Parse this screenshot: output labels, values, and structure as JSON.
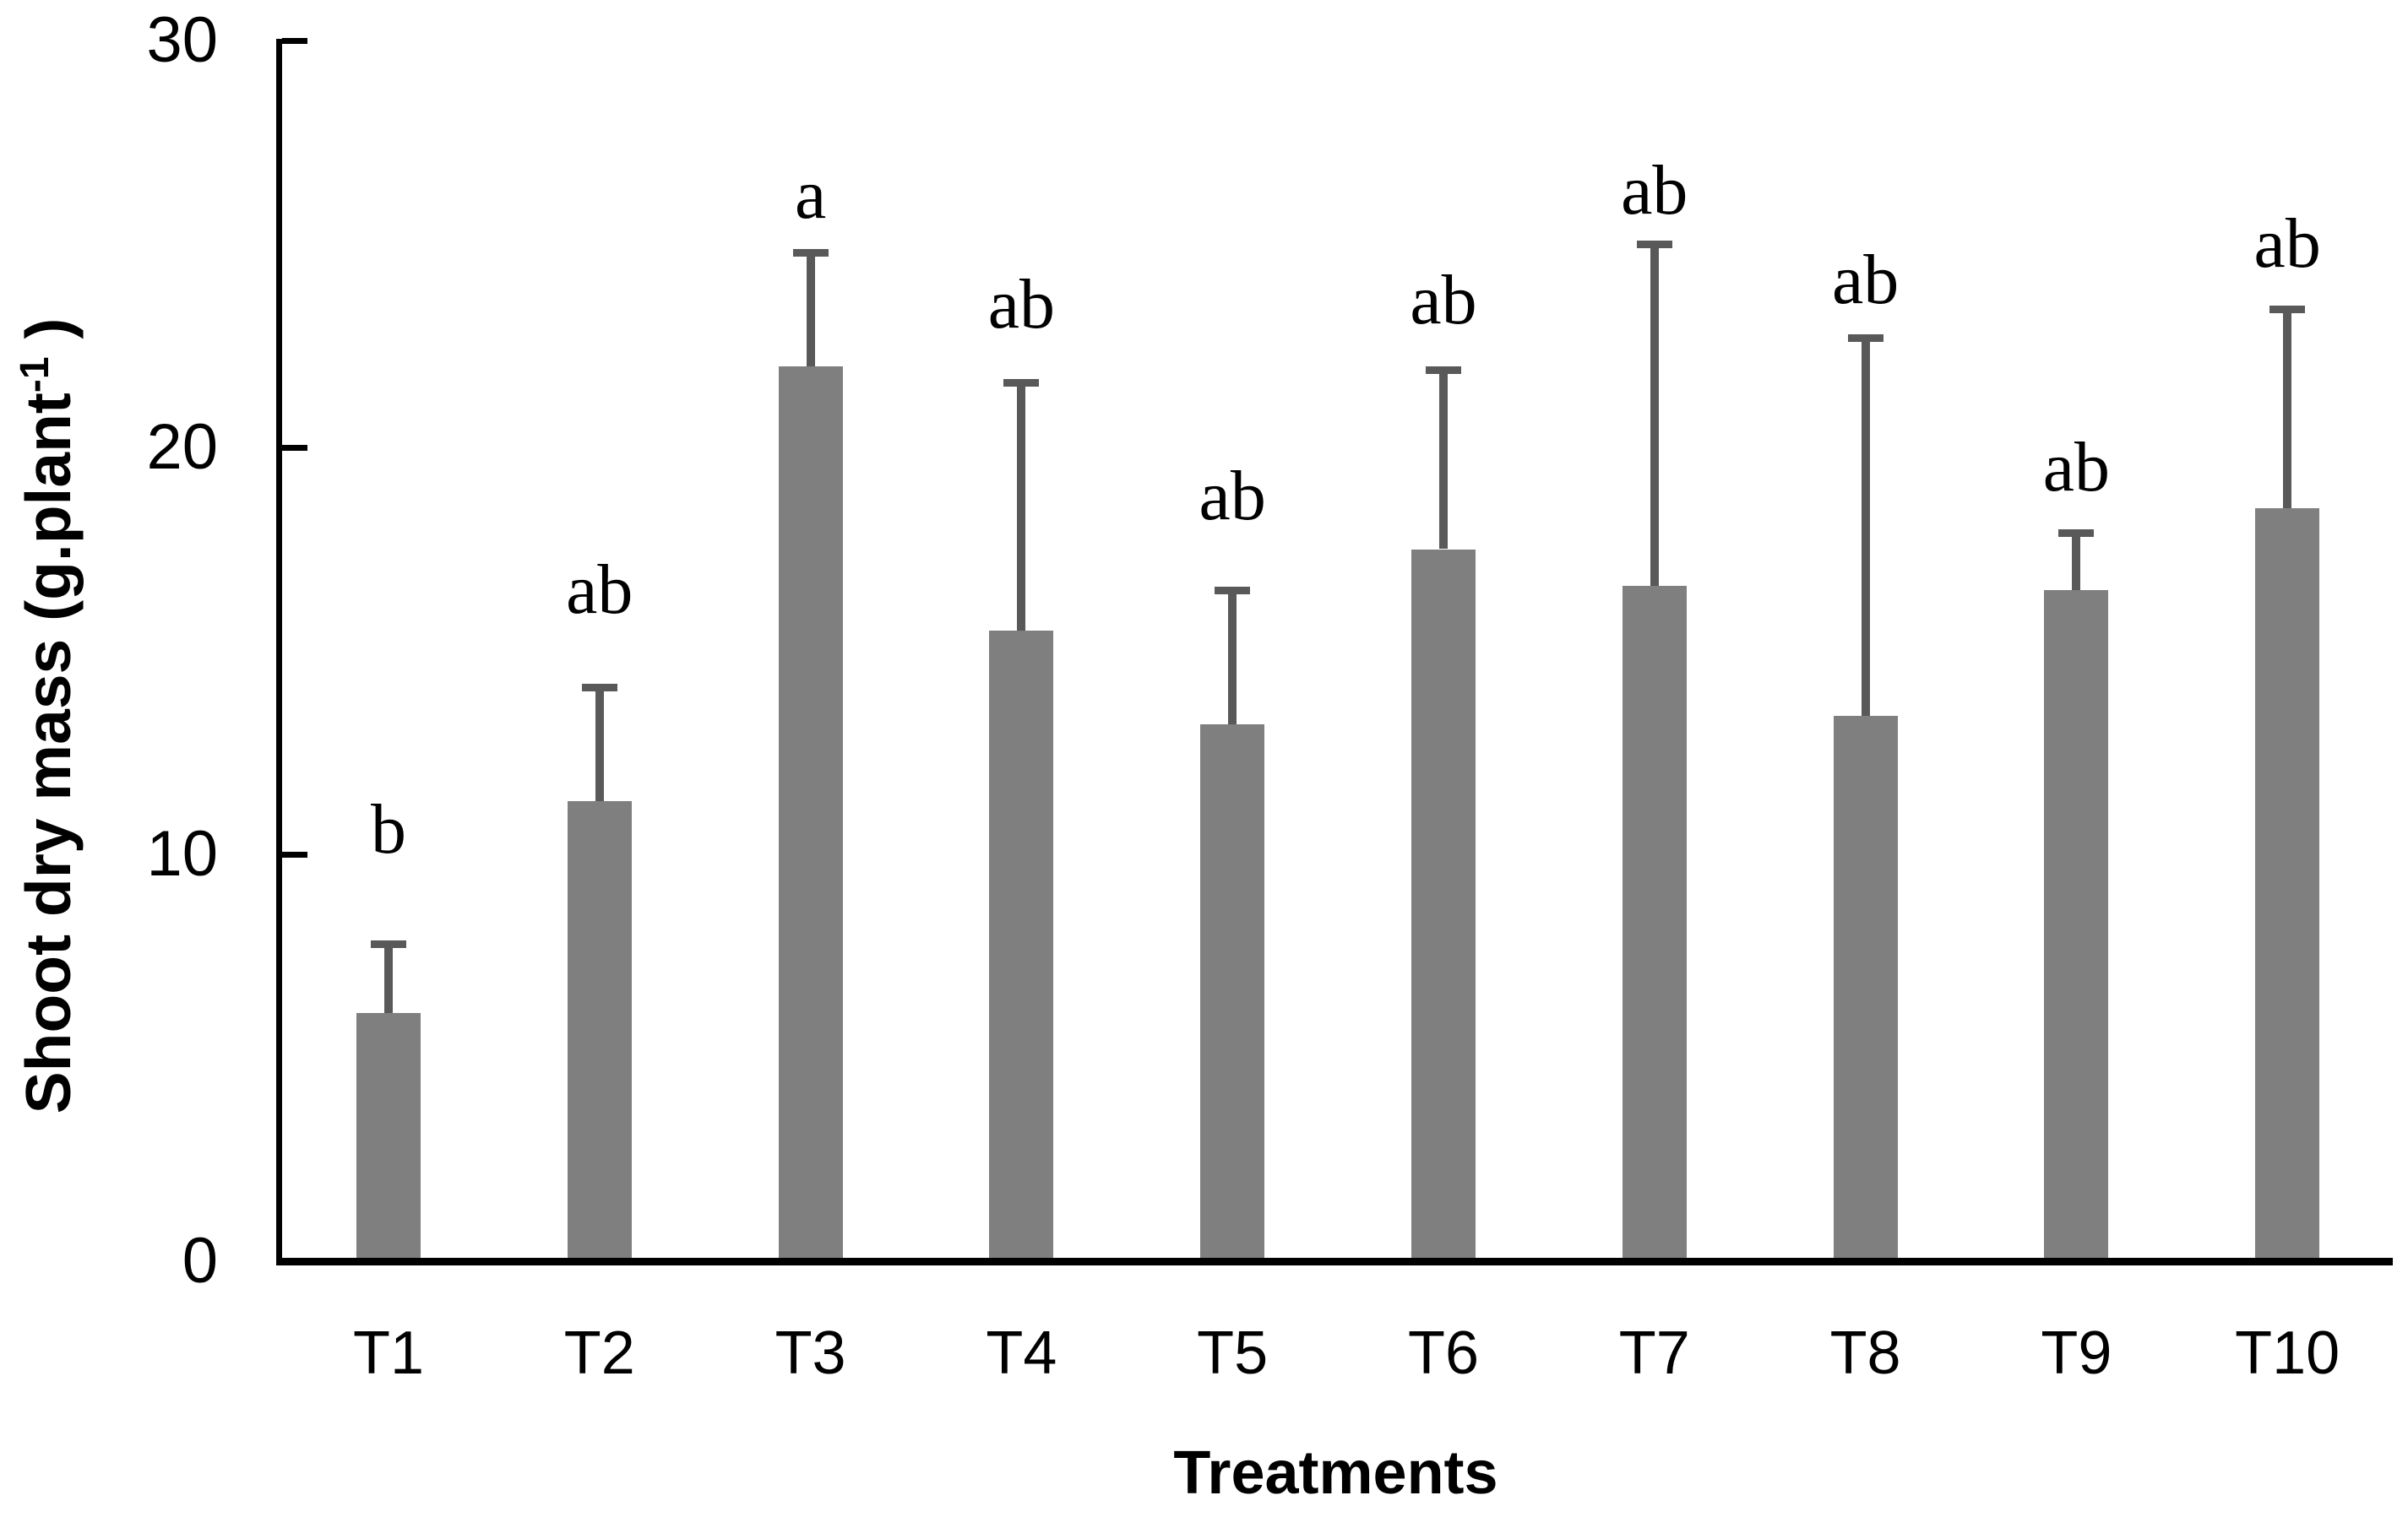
{
  "chart_data": {
    "type": "bar",
    "title": "",
    "categories": [
      "T1",
      "T2",
      "T3",
      "T4",
      "T5",
      "T6",
      "T7",
      "T8",
      "T9",
      "T10"
    ],
    "values": [
      6.1,
      11.3,
      22.0,
      15.5,
      13.2,
      17.5,
      16.6,
      13.4,
      16.5,
      18.5
    ],
    "error_upper": [
      1.7,
      2.8,
      2.8,
      6.1,
      3.3,
      4.4,
      8.4,
      9.3,
      1.4,
      4.9
    ],
    "sig_letters": [
      "b",
      "ab",
      "a",
      "ab",
      "ab",
      "ab",
      "ab",
      "ab",
      "ab",
      "ab"
    ],
    "sig_letter_y": [
      10.6,
      16.5,
      26.2,
      23.5,
      18.8,
      23.6,
      26.3,
      24.1,
      19.5,
      25.0
    ],
    "xlabel": "Treatments",
    "ylabel_prefix": "Shoot dry mass (g.plant",
    "ylabel_sup": "-1",
    "ylabel_suffix": " )",
    "yticks": [
      0,
      10,
      20,
      30
    ],
    "ylim": [
      0,
      30
    ],
    "grid": "off",
    "legend": "none",
    "bar_color": "#7F7F7F",
    "error_color": "#595959",
    "axis_color": "#000000",
    "background_color": "#FFFFFF"
  }
}
